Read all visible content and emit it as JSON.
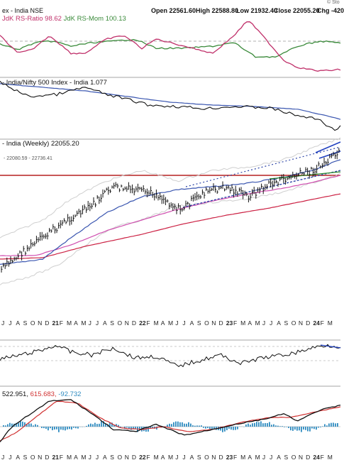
{
  "header": {
    "title": "ex - India NSE",
    "open": "Open 22561.60",
    "high": "High 22588.80",
    "low": "Low 21932.40",
    "close": "Close 22055.20",
    "chg": "Chg -420",
    "corner": "© Sto"
  },
  "panels": {
    "rrg": {
      "label_a": "JdK RS-Ratio 98.62",
      "label_b": "JdK RS-Mom 100.13"
    },
    "rs": {
      "label": "- India/Nifty 500 Index - India 1.077"
    },
    "price": {
      "label": "- India (Weekly) 22055.20",
      "channel_label": "- 22080.59 - 22736.41"
    },
    "macd": {
      "label_a": "522.951,",
      "label_b": "615.683,",
      "label_c": "-92.732"
    }
  },
  "colors": {
    "price": "#111111",
    "sma_fast": "#3a56b0",
    "sma_slow": "#d04fb0",
    "sma_long": "#cc2244",
    "support": "#b52020",
    "ratio": "#c0306a",
    "momentum": "#3a8a3a",
    "macd_signal": "#d03030",
    "hist": "#2e8bc0"
  },
  "chart_data": {
    "type": "line",
    "x_axis": {
      "labels": [
        "J",
        "J",
        "A",
        "S",
        "O",
        "N",
        "D",
        "21",
        "F",
        "M",
        "A",
        "M",
        "J",
        "J",
        "A",
        "S",
        "O",
        "N",
        "D",
        "22",
        "F",
        "M",
        "A",
        "M",
        "J",
        "J",
        "A",
        "S",
        "O",
        "N",
        "D",
        "23",
        "F",
        "M",
        "A",
        "M",
        "J",
        "J",
        "A",
        "S",
        "O",
        "N",
        "D",
        "24",
        "F",
        "M"
      ],
      "bold_labels": [
        "21",
        "22",
        "23",
        "24"
      ]
    },
    "series": [
      {
        "name": "JdK RS-Ratio",
        "last": 98.62
      },
      {
        "name": "JdK RS-Mom",
        "last": 100.13
      },
      {
        "name": "India/Nifty 500 Index - India",
        "last": 1.077
      },
      {
        "name": "India (Weekly)",
        "last": 22055.2,
        "x": [
          "2020-06",
          "2020-09",
          "2020-12",
          "2021-03",
          "2021-06",
          "2021-09",
          "2021-12",
          "2022-03",
          "2022-06",
          "2022-09",
          "2022-12",
          "2023-03",
          "2023-06",
          "2023-09",
          "2023-12",
          "2024-03"
        ],
        "values": [
          8200,
          10300,
          12300,
          14300,
          15800,
          18300,
          17900,
          17400,
          15500,
          17600,
          18300,
          17200,
          18700,
          19600,
          20500,
          22400
        ]
      },
      {
        "name": "MACD",
        "values": [
          522.951,
          615.683,
          -92.732
        ]
      }
    ]
  }
}
